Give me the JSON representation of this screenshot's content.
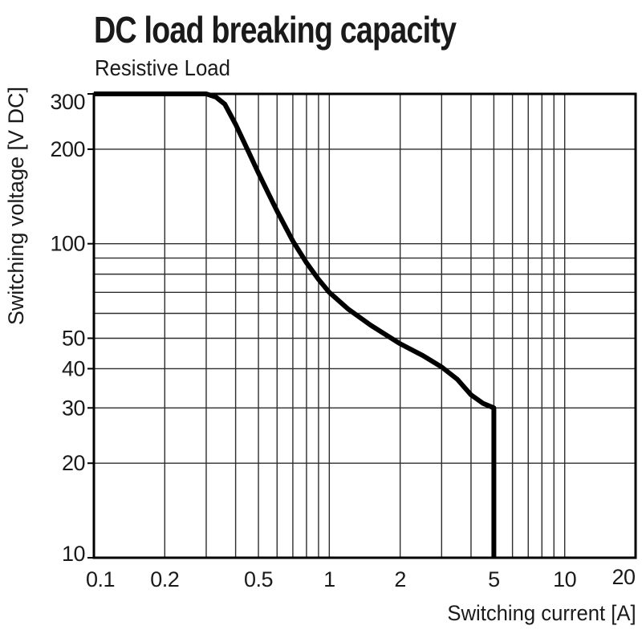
{
  "header": {
    "title": "DC load breaking capacity",
    "subtitle": "Resistive Load"
  },
  "chart_data": {
    "type": "line",
    "title": "DC load breaking capacity",
    "subtitle": "Resistive Load",
    "xlabel": "Switching current [A]",
    "ylabel": "Switching voltage [V DC]",
    "x_scale": "log",
    "y_scale": "log",
    "xlim": [
      0.1,
      20
    ],
    "ylim": [
      10,
      300
    ],
    "grid": true,
    "legend": false,
    "x_ticks": [
      {
        "value": 0.1,
        "label": "0.1"
      },
      {
        "value": 0.2,
        "label": "0.2"
      },
      {
        "value": 0.5,
        "label": "0.5"
      },
      {
        "value": 1,
        "label": "1"
      },
      {
        "value": 2,
        "label": "2"
      },
      {
        "value": 5,
        "label": "5"
      },
      {
        "value": 10,
        "label": "10"
      },
      {
        "value": 20,
        "label": "20"
      }
    ],
    "y_ticks": [
      {
        "value": 10,
        "label": "10"
      },
      {
        "value": 20,
        "label": "20"
      },
      {
        "value": 30,
        "label": "30"
      },
      {
        "value": 40,
        "label": "40"
      },
      {
        "value": 50,
        "label": "50"
      },
      {
        "value": 100,
        "label": "100"
      },
      {
        "value": 200,
        "label": "200"
      },
      {
        "value": 300,
        "label": "300"
      }
    ],
    "x_gridlines": [
      0.2,
      0.3,
      0.4,
      0.5,
      0.6,
      0.7,
      0.8,
      0.9,
      1,
      2,
      3,
      4,
      5,
      6,
      7,
      8,
      9,
      10
    ],
    "y_gridlines": [
      20,
      30,
      40,
      50,
      60,
      70,
      80,
      90,
      100,
      200
    ],
    "series": [
      {
        "name": "resistive-load-breaking-capacity",
        "points": [
          [
            0.1,
            300
          ],
          [
            0.3,
            300
          ],
          [
            0.33,
            293
          ],
          [
            0.36,
            278
          ],
          [
            0.4,
            240
          ],
          [
            0.45,
            199
          ],
          [
            0.5,
            168
          ],
          [
            0.55,
            145
          ],
          [
            0.6,
            127
          ],
          [
            0.7,
            102
          ],
          [
            0.8,
            87
          ],
          [
            0.9,
            77
          ],
          [
            1,
            70
          ],
          [
            1.2,
            62
          ],
          [
            1.5,
            55
          ],
          [
            2,
            48
          ],
          [
            2.5,
            44
          ],
          [
            3,
            40.5
          ],
          [
            3.5,
            37
          ],
          [
            4,
            33
          ],
          [
            4.5,
            31
          ],
          [
            5,
            30
          ],
          [
            5,
            10
          ]
        ]
      }
    ],
    "colors": {
      "background": "#ffffff",
      "curve": "#000000",
      "grid": "#2d2d2d",
      "border": "#000000",
      "text": "#1a1a1a"
    }
  }
}
